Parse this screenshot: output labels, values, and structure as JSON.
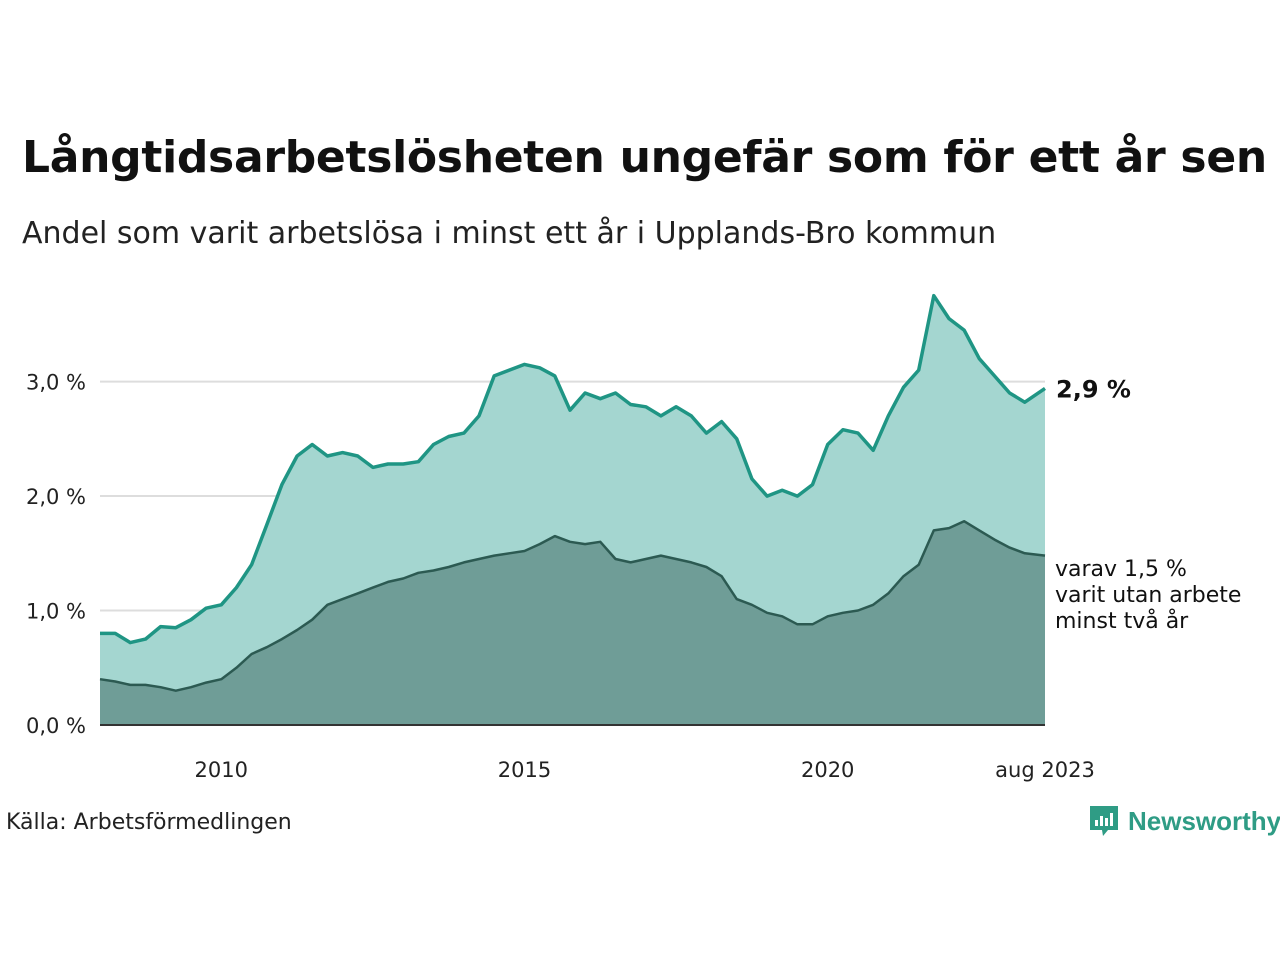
{
  "title": "Långtidsarbetslösheten ungefär som för ett år sen",
  "subtitle": "Andel som varit arbetslösa i minst ett år i Upplands-Bro kommun",
  "source": "Källa: Arbetsförmedlingen",
  "brand": {
    "name": "Newsworthy",
    "icon": "newsworthy-logo-icon",
    "color": "#2f9c85"
  },
  "colors": {
    "series1_line": "#1f9584",
    "series1_fill": "#a4d6d0",
    "series2_line": "#2c5a52",
    "series2_fill": "#6f9d97",
    "grid": "#dddddd",
    "axis": "#333333"
  },
  "chart_data": {
    "type": "area",
    "title": "Långtidsarbetslösheten ungefär som för ett år sen",
    "subtitle": "Andel som varit arbetslösa i minst ett år i Upplands-Bro kommun",
    "x_range": [
      "2008-01",
      "2023-08"
    ],
    "ylim": [
      0,
      3.8
    ],
    "y_ticks": [
      {
        "value": 0,
        "label": "0,0 %"
      },
      {
        "value": 1,
        "label": "1,0 %"
      },
      {
        "value": 2,
        "label": "2,0 %"
      },
      {
        "value": 3,
        "label": "3,0 %"
      }
    ],
    "x_ticks": [
      {
        "date": "2010-01",
        "label": "2010"
      },
      {
        "date": "2015-01",
        "label": "2015"
      },
      {
        "date": "2020-01",
        "label": "2020"
      },
      {
        "date": "2023-08",
        "label": "aug 2023"
      }
    ],
    "grid": true,
    "series": [
      {
        "points": [
          [
            "2008-01",
            0.8
          ],
          [
            "2008-04",
            0.8
          ],
          [
            "2008-07",
            0.72
          ],
          [
            "2008-10",
            0.75
          ],
          [
            "2009-01",
            0.86
          ],
          [
            "2009-04",
            0.85
          ],
          [
            "2009-07",
            0.92
          ],
          [
            "2009-10",
            1.02
          ],
          [
            "2010-01",
            1.05
          ],
          [
            "2010-04",
            1.2
          ],
          [
            "2010-07",
            1.4
          ],
          [
            "2010-10",
            1.75
          ],
          [
            "2011-01",
            2.1
          ],
          [
            "2011-04",
            2.35
          ],
          [
            "2011-07",
            2.45
          ],
          [
            "2011-10",
            2.35
          ],
          [
            "2012-01",
            2.38
          ],
          [
            "2012-04",
            2.35
          ],
          [
            "2012-07",
            2.25
          ],
          [
            "2012-10",
            2.28
          ],
          [
            "2013-01",
            2.28
          ],
          [
            "2013-04",
            2.3
          ],
          [
            "2013-07",
            2.45
          ],
          [
            "2013-10",
            2.52
          ],
          [
            "2014-01",
            2.55
          ],
          [
            "2014-04",
            2.7
          ],
          [
            "2014-07",
            3.05
          ],
          [
            "2014-10",
            3.1
          ],
          [
            "2015-01",
            3.15
          ],
          [
            "2015-04",
            3.12
          ],
          [
            "2015-07",
            3.05
          ],
          [
            "2015-10",
            2.75
          ],
          [
            "2016-01",
            2.9
          ],
          [
            "2016-04",
            2.85
          ],
          [
            "2016-07",
            2.9
          ],
          [
            "2016-10",
            2.8
          ],
          [
            "2017-01",
            2.78
          ],
          [
            "2017-04",
            2.7
          ],
          [
            "2017-07",
            2.78
          ],
          [
            "2017-10",
            2.7
          ],
          [
            "2018-01",
            2.55
          ],
          [
            "2018-04",
            2.65
          ],
          [
            "2018-07",
            2.5
          ],
          [
            "2018-10",
            2.15
          ],
          [
            "2019-01",
            2.0
          ],
          [
            "2019-04",
            2.05
          ],
          [
            "2019-07",
            2.0
          ],
          [
            "2019-10",
            2.1
          ],
          [
            "2020-01",
            2.45
          ],
          [
            "2020-04",
            2.58
          ],
          [
            "2020-07",
            2.55
          ],
          [
            "2020-10",
            2.4
          ],
          [
            "2021-01",
            2.7
          ],
          [
            "2021-04",
            2.95
          ],
          [
            "2021-07",
            3.1
          ],
          [
            "2021-10",
            3.75
          ],
          [
            "2022-01",
            3.55
          ],
          [
            "2022-04",
            3.45
          ],
          [
            "2022-07",
            3.2
          ],
          [
            "2022-10",
            3.05
          ],
          [
            "2023-01",
            2.9
          ],
          [
            "2023-04",
            2.82
          ],
          [
            "2023-08",
            2.94
          ]
        ],
        "end_label": "2,9 %"
      },
      {
        "points": [
          [
            "2008-01",
            0.4
          ],
          [
            "2008-04",
            0.38
          ],
          [
            "2008-07",
            0.35
          ],
          [
            "2008-10",
            0.35
          ],
          [
            "2009-01",
            0.33
          ],
          [
            "2009-04",
            0.3
          ],
          [
            "2009-07",
            0.33
          ],
          [
            "2009-10",
            0.37
          ],
          [
            "2010-01",
            0.4
          ],
          [
            "2010-04",
            0.5
          ],
          [
            "2010-07",
            0.62
          ],
          [
            "2010-10",
            0.68
          ],
          [
            "2011-01",
            0.75
          ],
          [
            "2011-04",
            0.83
          ],
          [
            "2011-07",
            0.92
          ],
          [
            "2011-10",
            1.05
          ],
          [
            "2012-01",
            1.1
          ],
          [
            "2012-04",
            1.15
          ],
          [
            "2012-07",
            1.2
          ],
          [
            "2012-10",
            1.25
          ],
          [
            "2013-01",
            1.28
          ],
          [
            "2013-04",
            1.33
          ],
          [
            "2013-07",
            1.35
          ],
          [
            "2013-10",
            1.38
          ],
          [
            "2014-01",
            1.42
          ],
          [
            "2014-04",
            1.45
          ],
          [
            "2014-07",
            1.48
          ],
          [
            "2014-10",
            1.5
          ],
          [
            "2015-01",
            1.52
          ],
          [
            "2015-04",
            1.58
          ],
          [
            "2015-07",
            1.65
          ],
          [
            "2015-10",
            1.6
          ],
          [
            "2016-01",
            1.58
          ],
          [
            "2016-04",
            1.6
          ],
          [
            "2016-07",
            1.45
          ],
          [
            "2016-10",
            1.42
          ],
          [
            "2017-01",
            1.45
          ],
          [
            "2017-04",
            1.48
          ],
          [
            "2017-07",
            1.45
          ],
          [
            "2017-10",
            1.42
          ],
          [
            "2018-01",
            1.38
          ],
          [
            "2018-04",
            1.3
          ],
          [
            "2018-07",
            1.1
          ],
          [
            "2018-10",
            1.05
          ],
          [
            "2019-01",
            0.98
          ],
          [
            "2019-04",
            0.95
          ],
          [
            "2019-07",
            0.88
          ],
          [
            "2019-10",
            0.88
          ],
          [
            "2020-01",
            0.95
          ],
          [
            "2020-04",
            0.98
          ],
          [
            "2020-07",
            1.0
          ],
          [
            "2020-10",
            1.05
          ],
          [
            "2021-01",
            1.15
          ],
          [
            "2021-04",
            1.3
          ],
          [
            "2021-07",
            1.4
          ],
          [
            "2021-10",
            1.7
          ],
          [
            "2022-01",
            1.72
          ],
          [
            "2022-04",
            1.78
          ],
          [
            "2022-07",
            1.7
          ],
          [
            "2022-10",
            1.62
          ],
          [
            "2023-01",
            1.55
          ],
          [
            "2023-04",
            1.5
          ],
          [
            "2023-08",
            1.48
          ]
        ],
        "annotation": [
          "varav 1,5 %",
          "varit utan arbete",
          "minst två år"
        ]
      }
    ]
  }
}
